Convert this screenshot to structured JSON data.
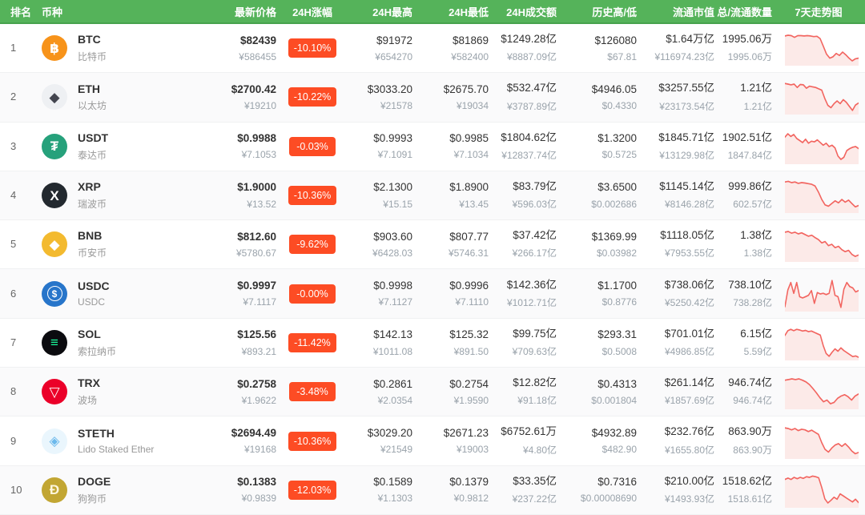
{
  "colors": {
    "header_bg": "#55b35a",
    "header_border": "#47a24d",
    "badge_bg": "#fd4c24",
    "spark_line": "#f26560",
    "spark_fill": "#fceae8"
  },
  "header": {
    "columns": [
      "排名",
      "币种",
      "最新价格",
      "24H涨幅",
      "24H最高",
      "24H最低",
      "24H成交额",
      "历史高/低",
      "流通市值",
      "总/流通数量",
      "7天走势图"
    ]
  },
  "rows": [
    {
      "rank": "1",
      "symbol": "BTC",
      "name": "比特币",
      "icon": {
        "name": "btc",
        "glyph": "฿",
        "bg": "#F7931A",
        "fg": "#ffffff",
        "ring": false
      },
      "price_usd": "$82439",
      "price_cny": "¥586455",
      "change": "-10.10%",
      "high_usd": "$91972",
      "high_cny": "¥654270",
      "low_usd": "$81869",
      "low_cny": "¥582400",
      "vol_usd": "$1249.28亿",
      "vol_cny": "¥8887.09亿",
      "hist_high": "$126080",
      "hist_low": "$67.81",
      "mcap_usd": "$1.64万亿",
      "mcap_cny": "¥116974.23亿",
      "supply_total": "1995.06万",
      "supply_circ": "1995.06万",
      "spark": [
        14,
        12,
        13,
        18,
        13,
        13,
        14,
        13,
        14,
        16,
        15,
        22,
        45,
        68,
        80,
        76,
        66,
        72,
        62,
        70,
        80,
        88,
        82,
        80
      ]
    },
    {
      "rank": "2",
      "symbol": "ETH",
      "name": "以太坊",
      "icon": {
        "name": "eth",
        "glyph": "◆",
        "bg": "#eef0f3",
        "fg": "#43454f",
        "ring": false
      },
      "price_usd": "$2700.42",
      "price_cny": "¥19210",
      "change": "-10.22%",
      "high_usd": "$3033.20",
      "high_cny": "¥21578",
      "low_usd": "$2675.70",
      "low_cny": "¥19034",
      "vol_usd": "$532.47亿",
      "vol_cny": "¥3787.89亿",
      "hist_high": "$4946.05",
      "hist_low": "$0.4330",
      "mcap_usd": "$3257.55亿",
      "mcap_cny": "¥23173.54亿",
      "supply_total": "1.21亿",
      "supply_circ": "1.21亿",
      "spark": [
        10,
        12,
        14,
        12,
        22,
        13,
        14,
        24,
        18,
        20,
        22,
        26,
        30,
        55,
        75,
        82,
        70,
        62,
        70,
        58,
        66,
        78,
        90,
        74,
        68
      ]
    },
    {
      "rank": "3",
      "symbol": "USDT",
      "name": "泰达币",
      "icon": {
        "name": "usdt",
        "glyph": "₮",
        "bg": "#26A17B",
        "fg": "#ffffff",
        "ring": false
      },
      "price_usd": "$0.9988",
      "price_cny": "¥7.1053",
      "change": "-0.03%",
      "high_usd": "$0.9993",
      "high_cny": "¥7.1091",
      "low_usd": "$0.9985",
      "low_cny": "¥7.1034",
      "vol_usd": "$1804.62亿",
      "vol_cny": "¥12837.74亿",
      "hist_high": "$1.3200",
      "hist_low": "$0.5725",
      "mcap_usd": "$1845.71亿",
      "mcap_cny": "¥13129.98亿",
      "supply_total": "1902.51亿",
      "supply_circ": "1847.84亿",
      "spark": [
        22,
        12,
        20,
        14,
        26,
        32,
        38,
        28,
        40,
        34,
        36,
        30,
        38,
        46,
        40,
        50,
        46,
        54,
        78,
        88,
        82,
        62,
        56,
        52,
        50,
        56
      ]
    },
    {
      "rank": "4",
      "symbol": "XRP",
      "name": "瑞波币",
      "icon": {
        "name": "xrp",
        "glyph": "X",
        "bg": "#23292F",
        "fg": "#ffffff",
        "ring": false
      },
      "price_usd": "$1.9000",
      "price_cny": "¥13.52",
      "change": "-10.36%",
      "high_usd": "$2.1300",
      "high_cny": "¥15.15",
      "low_usd": "$1.8900",
      "low_cny": "¥13.45",
      "vol_usd": "$83.79亿",
      "vol_cny": "¥596.03亿",
      "hist_high": "$3.6500",
      "hist_low": "$0.002686",
      "mcap_usd": "$1145.14亿",
      "mcap_cny": "¥8146.28亿",
      "supply_total": "999.86亿",
      "supply_circ": "602.57亿",
      "spark": [
        10,
        8,
        12,
        10,
        14,
        12,
        13,
        15,
        17,
        22,
        40,
        62,
        78,
        82,
        74,
        66,
        72,
        62,
        70,
        64,
        74,
        84,
        80
      ]
    },
    {
      "rank": "5",
      "symbol": "BNB",
      "name": "币安币",
      "icon": {
        "name": "bnb",
        "glyph": "◆",
        "bg": "#F3BA2F",
        "fg": "#ffffff",
        "ring": false
      },
      "price_usd": "$812.60",
      "price_cny": "¥5780.67",
      "change": "-9.62%",
      "high_usd": "$903.60",
      "high_cny": "¥6428.03",
      "low_usd": "$807.77",
      "low_cny": "¥5746.31",
      "vol_usd": "$37.42亿",
      "vol_cny": "¥266.17亿",
      "hist_high": "$1369.99",
      "hist_low": "$0.03982",
      "mcap_usd": "$1118.05亿",
      "mcap_cny": "¥7953.55亿",
      "supply_total": "1.38亿",
      "supply_circ": "1.38亿",
      "spark": [
        14,
        12,
        17,
        14,
        19,
        16,
        21,
        26,
        23,
        30,
        36,
        46,
        42,
        54,
        50,
        60,
        56,
        66,
        72,
        68,
        80,
        86,
        82
      ]
    },
    {
      "rank": "6",
      "symbol": "USDC",
      "name": "USDC",
      "icon": {
        "name": "usdc",
        "glyph": "$",
        "bg": "#2775CA",
        "fg": "#ffffff",
        "ring": true
      },
      "price_usd": "$0.9997",
      "price_cny": "¥7.1117",
      "change": "-0.00%",
      "high_usd": "$0.9998",
      "high_cny": "¥7.1127",
      "low_usd": "$0.9996",
      "low_cny": "¥7.1110",
      "vol_usd": "$142.36亿",
      "vol_cny": "¥1012.71亿",
      "hist_high": "$1.1700",
      "hist_low": "$0.8776",
      "mcap_usd": "$738.06亿",
      "mcap_cny": "¥5250.42亿",
      "supply_total": "738.10亿",
      "supply_circ": "738.28亿",
      "spark": [
        88,
        38,
        16,
        48,
        16,
        58,
        62,
        58,
        54,
        40,
        78,
        46,
        50,
        48,
        52,
        48,
        10,
        54,
        58,
        90,
        36,
        16,
        28,
        32,
        44,
        40
      ]
    },
    {
      "rank": "7",
      "symbol": "SOL",
      "name": "索拉纳币",
      "icon": {
        "name": "sol",
        "glyph": "≡",
        "bg": "#0b0b0f",
        "fg": "#19fb9b",
        "ring": false
      },
      "price_usd": "$125.56",
      "price_cny": "¥893.21",
      "change": "-11.42%",
      "high_usd": "$142.13",
      "high_cny": "¥1011.08",
      "low_usd": "$125.32",
      "low_cny": "¥891.50",
      "vol_usd": "$99.75亿",
      "vol_cny": "¥709.63亿",
      "hist_high": "$293.31",
      "hist_low": "$0.5008",
      "mcap_usd": "$701.01亿",
      "mcap_cny": "¥4986.85亿",
      "supply_total": "6.15亿",
      "supply_circ": "5.59亿",
      "spark": [
        28,
        14,
        10,
        14,
        10,
        12,
        15,
        13,
        17,
        15,
        19,
        23,
        27,
        58,
        82,
        90,
        78,
        68,
        75,
        65,
        73,
        79,
        85,
        91,
        89,
        93
      ]
    },
    {
      "rank": "8",
      "symbol": "TRX",
      "name": "波场",
      "icon": {
        "name": "trx",
        "glyph": "▽",
        "bg": "#EB0029",
        "fg": "#ffffff",
        "ring": false
      },
      "price_usd": "$0.2758",
      "price_cny": "¥1.9622",
      "change": "-3.48%",
      "high_usd": "$0.2861",
      "high_cny": "¥2.0354",
      "low_usd": "$0.2754",
      "low_cny": "¥1.9590",
      "vol_usd": "$12.82亿",
      "vol_cny": "¥91.18亿",
      "hist_high": "$0.4313",
      "hist_low": "$0.001804",
      "mcap_usd": "$261.14亿",
      "mcap_cny": "¥1857.69亿",
      "supply_total": "946.74亿",
      "supply_circ": "946.74亿",
      "spark": [
        16,
        14,
        12,
        14,
        12,
        16,
        21,
        29,
        41,
        54,
        68,
        80,
        75,
        86,
        82,
        70,
        63,
        59,
        65,
        75,
        63,
        57
      ]
    },
    {
      "rank": "9",
      "symbol": "STETH",
      "name": "Lido Staked Ether",
      "icon": {
        "name": "steth",
        "glyph": "◈",
        "bg": "#eaf6fd",
        "fg": "#6cb9ec",
        "ring": false
      },
      "price_usd": "$2694.49",
      "price_cny": "¥19168",
      "change": "-10.36%",
      "high_usd": "$3029.20",
      "high_cny": "¥21549",
      "low_usd": "$2671.23",
      "low_cny": "¥19003",
      "vol_usd": "$6752.61万",
      "vol_cny": "¥4.80亿",
      "hist_high": "$4932.89",
      "hist_low": "$482.90",
      "mcap_usd": "$232.76亿",
      "mcap_cny": "¥1655.80亿",
      "supply_total": "863.90万",
      "supply_circ": "863.90万",
      "spark": [
        10,
        12,
        16,
        12,
        18,
        14,
        16,
        21,
        17,
        23,
        29,
        54,
        74,
        82,
        70,
        61,
        57,
        65,
        57,
        67,
        79,
        87,
        83
      ]
    },
    {
      "rank": "10",
      "symbol": "DOGE",
      "name": "狗狗币",
      "icon": {
        "name": "doge",
        "glyph": "Ð",
        "bg": "#C2A633",
        "fg": "#fdf6dd",
        "ring": false
      },
      "price_usd": "$0.1383",
      "price_cny": "¥0.9839",
      "change": "-12.03%",
      "high_usd": "$0.1589",
      "high_cny": "¥1.1303",
      "low_usd": "$0.1379",
      "low_cny": "¥0.9812",
      "vol_usd": "$33.35亿",
      "vol_cny": "¥237.22亿",
      "hist_high": "$0.7316",
      "hist_low": "$0.00008690",
      "mcap_usd": "$210.00亿",
      "mcap_cny": "¥1493.93亿",
      "supply_total": "1518.62亿",
      "supply_circ": "1518.61亿",
      "spark": [
        18,
        14,
        18,
        12,
        16,
        12,
        15,
        10,
        12,
        8,
        10,
        13,
        42,
        76,
        88,
        80,
        71,
        77,
        61,
        67,
        73,
        79,
        85,
        77,
        87
      ]
    }
  ]
}
